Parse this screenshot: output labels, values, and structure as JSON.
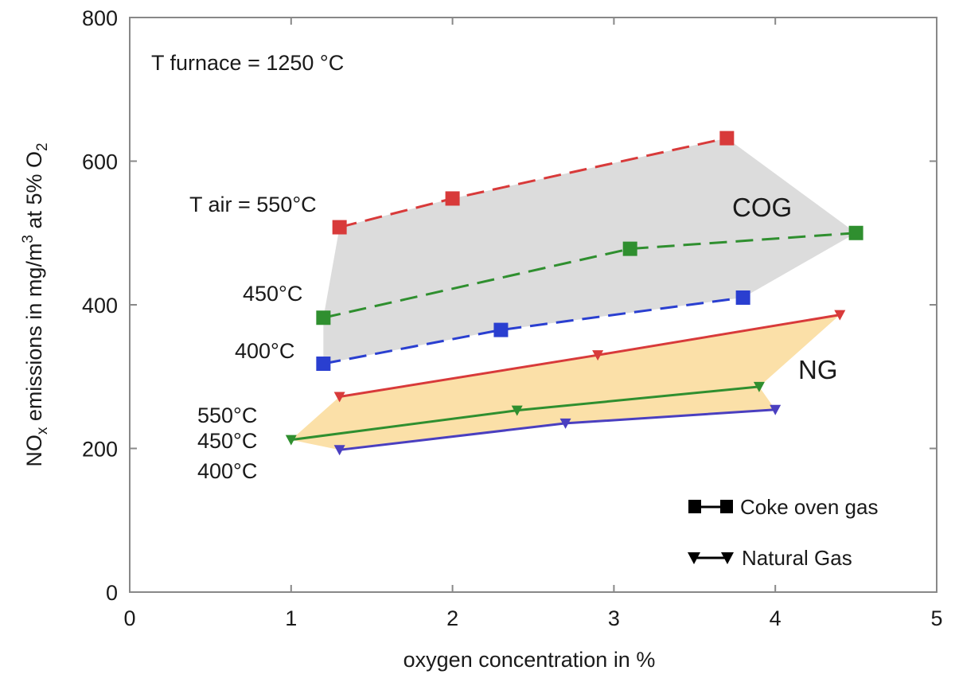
{
  "chart_data": {
    "type": "line",
    "xlabel": "oxygen concentration in %",
    "ylabel": {
      "main": "NO",
      "sub": "x",
      "mid": " emissions in mg/m",
      "sup": "3",
      "mid2": " at 5% O",
      "sub2": "2"
    },
    "xlim": [
      0,
      5
    ],
    "ylim": [
      0,
      800
    ],
    "xticks": [
      0,
      1,
      2,
      3,
      4,
      5
    ],
    "yticks": [
      0,
      200,
      400,
      600,
      800
    ],
    "grid": false,
    "legend_position": "bottom-right",
    "legend": [
      {
        "label": "Coke oven gas",
        "marker": "square"
      },
      {
        "label": "Natural Gas",
        "marker": "triangle-down"
      }
    ],
    "annotations": {
      "furnace": "T furnace = 1250 °C",
      "cog_region": "COG",
      "ng_region": "NG",
      "cog_series_labels": [
        "T air = 550°C",
        "450°C",
        "400°C"
      ],
      "ng_series_labels": [
        "550°C",
        "450°C",
        "400°C"
      ]
    },
    "regions": [
      {
        "name": "COG",
        "color": "#dcdcdc",
        "polygon": [
          [
            1.3,
            508
          ],
          [
            2.0,
            548
          ],
          [
            3.7,
            632
          ],
          [
            4.5,
            500
          ],
          [
            3.8,
            410
          ],
          [
            2.3,
            365
          ],
          [
            1.2,
            318
          ],
          [
            1.2,
            382
          ]
        ]
      },
      {
        "name": "NG",
        "color": "#fbe0a8",
        "polygon": [
          [
            1.3,
            272
          ],
          [
            2.9,
            330
          ],
          [
            4.4,
            386
          ],
          [
            3.9,
            286
          ],
          [
            4.0,
            254
          ],
          [
            2.7,
            235
          ],
          [
            1.3,
            198
          ],
          [
            1.0,
            212
          ]
        ]
      }
    ],
    "series": [
      {
        "fuel": "Coke oven gas",
        "label_group": "cog",
        "air_temp": "550°C",
        "color": "#d83a3a",
        "style": "dashed",
        "marker": "square",
        "x": [
          1.3,
          2.0,
          3.7
        ],
        "y": [
          508,
          548,
          632
        ]
      },
      {
        "fuel": "Coke oven gas",
        "label_group": "cog",
        "air_temp": "450°C",
        "color": "#2f8f2f",
        "style": "dashed",
        "marker": "square",
        "x": [
          1.2,
          3.1,
          4.5
        ],
        "y": [
          382,
          478,
          500
        ]
      },
      {
        "fuel": "Coke oven gas",
        "label_group": "cog",
        "air_temp": "400°C",
        "color": "#2a3fd0",
        "style": "dashed",
        "marker": "square",
        "x": [
          1.2,
          2.3,
          3.8
        ],
        "y": [
          318,
          365,
          410
        ]
      },
      {
        "fuel": "Natural Gas",
        "label_group": "ng",
        "air_temp": "550°C",
        "color": "#d83a3a",
        "style": "solid",
        "marker": "triangle-down",
        "x": [
          1.3,
          2.9,
          4.4
        ],
        "y": [
          272,
          330,
          386
        ]
      },
      {
        "fuel": "Natural Gas",
        "label_group": "ng",
        "air_temp": "450°C",
        "color": "#2f8f2f",
        "style": "solid",
        "marker": "triangle-down",
        "x": [
          1.0,
          2.4,
          3.9
        ],
        "y": [
          212,
          253,
          286
        ]
      },
      {
        "fuel": "Natural Gas",
        "label_group": "ng",
        "air_temp": "400°C",
        "color": "#4a3fc0",
        "style": "solid",
        "marker": "triangle-down",
        "x": [
          1.3,
          2.7,
          4.0
        ],
        "y": [
          198,
          235,
          254
        ]
      }
    ]
  }
}
